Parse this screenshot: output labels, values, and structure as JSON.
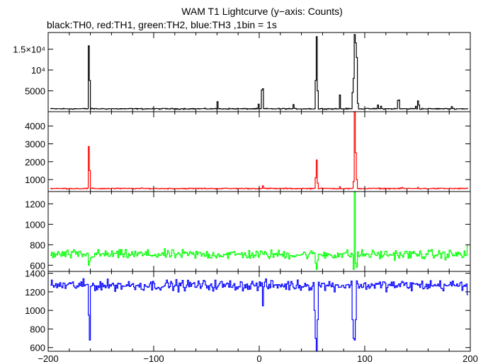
{
  "title": "WAM T1 Lightcurve (y−axis: Counts)",
  "subtitle": "black:TH0, red:TH1, green:TH2, blue:TH3 ,1bin = 1s",
  "chart_data": [
    {
      "type": "line",
      "series": [
        {
          "name": "TH0",
          "color": "#000000"
        }
      ],
      "xlim": [
        -200,
        200
      ],
      "ylim": [
        0,
        19000
      ],
      "yticks": [
        {
          "value": 5000,
          "label": "5000"
        },
        {
          "value": 10000,
          "label": "10⁴"
        },
        {
          "value": 15000,
          "label": "1.5×10⁴"
        }
      ],
      "baseline": 700,
      "noise": 80,
      "peaks": [
        [
          -162,
          15800
        ],
        [
          -161,
          7500
        ],
        [
          -40,
          2400
        ],
        [
          -1,
          1800
        ],
        [
          2,
          5200
        ],
        [
          3,
          5500
        ],
        [
          32,
          1700
        ],
        [
          53,
          7500
        ],
        [
          54,
          18000
        ],
        [
          55,
          5000
        ],
        [
          76,
          4000
        ],
        [
          88,
          4600
        ],
        [
          89,
          8000
        ],
        [
          90,
          18500
        ],
        [
          91,
          16500
        ],
        [
          92,
          13000
        ],
        [
          93,
          2000
        ],
        [
          112,
          1600
        ],
        [
          115,
          1300
        ],
        [
          131,
          2700
        ],
        [
          132,
          2800
        ],
        [
          148,
          1300
        ],
        [
          150,
          2600
        ],
        [
          151,
          1600
        ],
        [
          182,
          1200
        ]
      ]
    },
    {
      "type": "line",
      "series": [
        {
          "name": "TH1",
          "color": "#ff0000"
        }
      ],
      "xlim": [
        -200,
        200
      ],
      "ylim": [
        330,
        4800
      ],
      "yticks": [
        {
          "value": 1000,
          "label": "1000"
        },
        {
          "value": 2000,
          "label": "2000"
        },
        {
          "value": 3000,
          "label": "3000"
        },
        {
          "value": 4000,
          "label": "4000"
        }
      ],
      "baseline": 500,
      "noise": 18,
      "peaks": [
        [
          -162,
          2850
        ],
        [
          -161,
          1500
        ],
        [
          3,
          650
        ],
        [
          53,
          1100
        ],
        [
          54,
          2100
        ],
        [
          55,
          800
        ],
        [
          76,
          600
        ],
        [
          89,
          900
        ],
        [
          90,
          4800
        ],
        [
          91,
          2500
        ],
        [
          92,
          1000
        ],
        [
          135,
          560
        ],
        [
          150,
          560
        ]
      ]
    },
    {
      "type": "line",
      "series": [
        {
          "name": "TH2",
          "color": "#00ff00"
        }
      ],
      "xlim": [
        -200,
        200
      ],
      "ylim": [
        540,
        1320
      ],
      "yticks": [
        {
          "value": 600,
          "label": "600"
        },
        {
          "value": 800,
          "label": "800"
        },
        {
          "value": 1000,
          "label": "1000"
        },
        {
          "value": 1200,
          "label": "1200"
        }
      ],
      "baseline": 705,
      "noise": 32,
      "peaks": [
        [
          -162,
          600
        ],
        [
          -161,
          640
        ],
        [
          53,
          620
        ],
        [
          54,
          560
        ],
        [
          55,
          650
        ],
        [
          89,
          560
        ],
        [
          90,
          1320
        ],
        [
          91,
          620
        ],
        [
          92,
          580
        ],
        [
          197,
          790
        ]
      ]
    },
    {
      "type": "line",
      "series": [
        {
          "name": "TH3",
          "color": "#0000ff"
        }
      ],
      "xlim": [
        -200,
        200
      ],
      "ylim": [
        560,
        1420
      ],
      "yticks": [
        {
          "value": 600,
          "label": "600"
        },
        {
          "value": 800,
          "label": "800"
        },
        {
          "value": 1000,
          "label": "1000"
        },
        {
          "value": 1200,
          "label": "1200"
        },
        {
          "value": 1400,
          "label": "1400"
        }
      ],
      "baseline": 1270,
      "noise": 40,
      "peaks": [
        [
          -162,
          950
        ],
        [
          -161,
          680
        ],
        [
          3,
          1050
        ],
        [
          52,
          1000
        ],
        [
          53,
          700
        ],
        [
          54,
          560
        ],
        [
          55,
          900
        ],
        [
          88,
          900
        ],
        [
          89,
          700
        ],
        [
          90,
          680
        ],
        [
          91,
          900
        ],
        [
          197,
          1170
        ]
      ]
    }
  ],
  "xticks": [
    {
      "value": -200,
      "label": "−200"
    },
    {
      "value": -100,
      "label": "−100"
    },
    {
      "value": 0,
      "label": "0"
    },
    {
      "value": 100,
      "label": "100"
    },
    {
      "value": 200,
      "label": "200"
    }
  ]
}
